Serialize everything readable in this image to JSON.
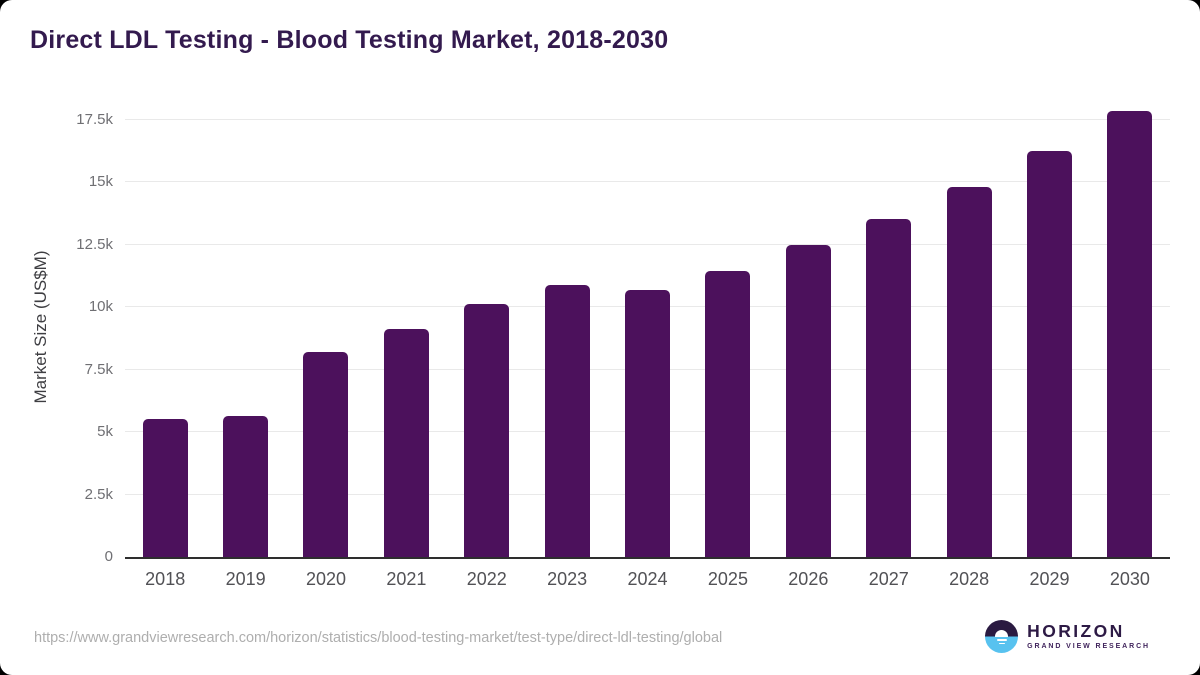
{
  "page": {
    "title": "Direct LDL Testing - Blood Testing Market, 2018-2030",
    "source_url": "https://www.grandviewresearch.com/horizon/statistics/blood-testing-market/test-type/direct-ldl-testing/global"
  },
  "logo": {
    "name": "HORIZON",
    "subtitle": "GRAND VIEW RESEARCH"
  },
  "colors": {
    "bar": "#4c115c",
    "title": "#331a4e",
    "gridline": "#e9e9e9",
    "axis_line": "#2e2e2e",
    "y_tick_label": "#6f6f73",
    "x_tick_label": "#515155",
    "footer_url": "#aeaeae",
    "logo_dark": "#2a1a41",
    "logo_blue": "#58c2ef"
  },
  "chart_data": {
    "type": "bar",
    "title": "Direct LDL Testing - Blood Testing Market, 2018-2030",
    "xlabel": "",
    "ylabel": "Market Size (US$M)",
    "categories": [
      "2018",
      "2019",
      "2020",
      "2021",
      "2022",
      "2023",
      "2024",
      "2025",
      "2026",
      "2027",
      "2028",
      "2029",
      "2030"
    ],
    "values": [
      5510,
      5640,
      8200,
      9130,
      10130,
      10900,
      10700,
      11460,
      12470,
      13540,
      14800,
      16240,
      17850
    ],
    "ylim": [
      0,
      18400
    ],
    "yticks": [
      0,
      2500,
      5000,
      7500,
      10000,
      12500,
      15000,
      17500
    ],
    "ytick_labels": [
      "0",
      "2.5k",
      "5k",
      "7.5k",
      "10k",
      "12.5k",
      "15k",
      "17.5k"
    ],
    "grid": "horizontal",
    "legend": "none",
    "bar_color": "#4c115c"
  }
}
